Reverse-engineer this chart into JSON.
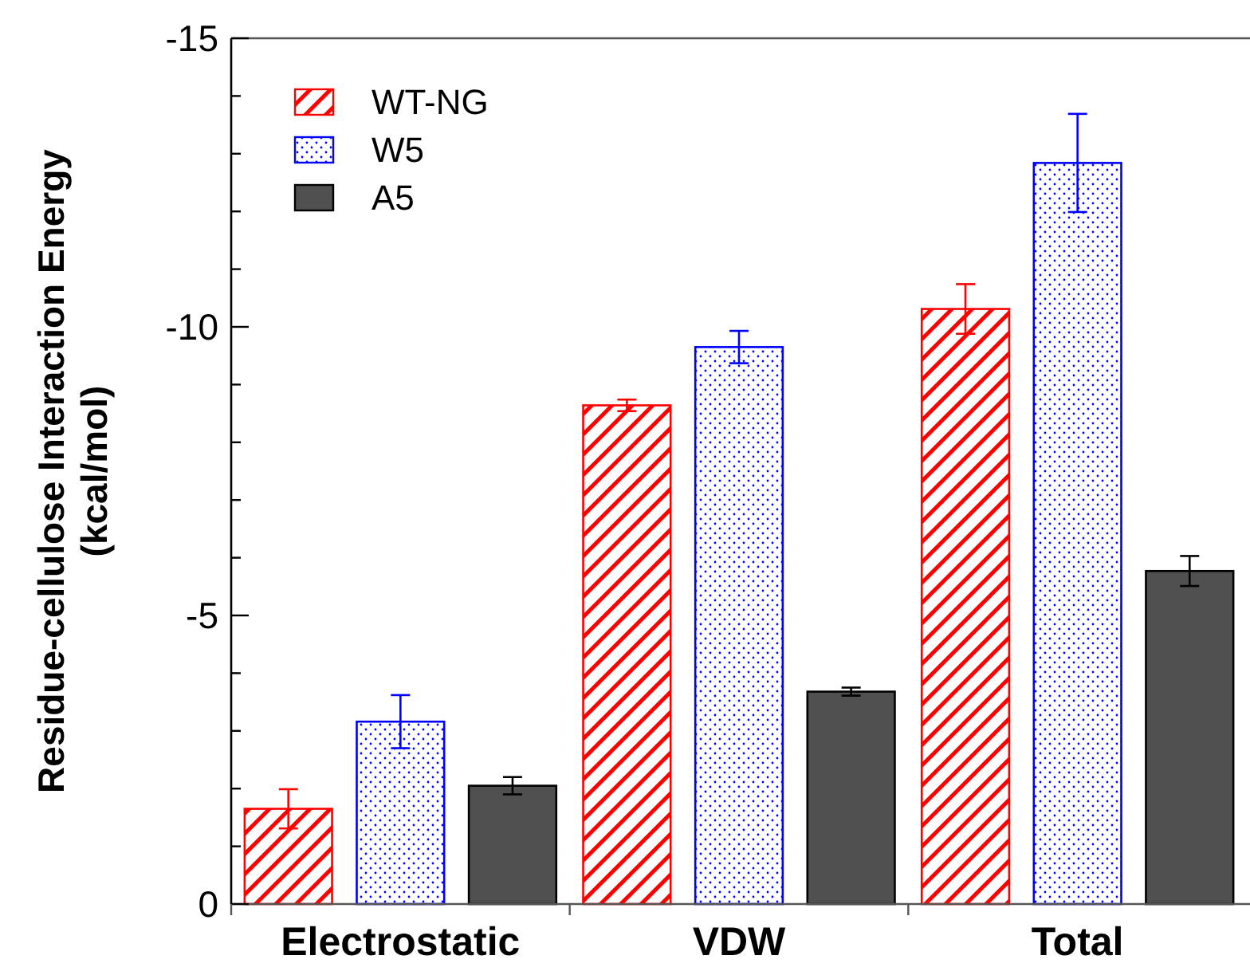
{
  "chart_data": {
    "type": "bar",
    "ylabel": "Residue-cellulose Interaction Energy\n(kcal/mol)",
    "categories": [
      "Electrostatic",
      "VDW",
      "Total"
    ],
    "series": [
      {
        "name": "WT-NG",
        "color": "#ff0000",
        "values": [
          -1.65,
          -8.64,
          -10.31
        ],
        "errors": [
          0.34,
          0.1,
          0.43
        ]
      },
      {
        "name": "W5",
        "color": "#0000ff",
        "values": [
          -3.16,
          -9.65,
          -12.84
        ],
        "errors": [
          0.46,
          0.28,
          0.85
        ]
      },
      {
        "name": "A5",
        "color": "#505050",
        "values": [
          -2.05,
          -3.68,
          -5.77
        ],
        "errors": [
          0.15,
          0.07,
          0.26
        ]
      }
    ],
    "ylim": [
      0,
      -15
    ],
    "yticks": [
      0,
      {
        "value": -1,
        "label": null
      },
      {
        "value": -2,
        "label": null
      },
      {
        "value": -3,
        "label": null
      },
      {
        "value": -4,
        "label": null
      },
      -5,
      {
        "value": -6,
        "label": null
      },
      {
        "value": -7,
        "label": null
      },
      {
        "value": -8,
        "label": null
      },
      {
        "value": -9,
        "label": null
      },
      -10,
      {
        "value": -11,
        "label": null
      },
      {
        "value": -12,
        "label": null
      },
      {
        "value": -13,
        "label": null
      },
      {
        "value": -14,
        "label": null
      },
      -15
    ],
    "legend": "top left"
  }
}
